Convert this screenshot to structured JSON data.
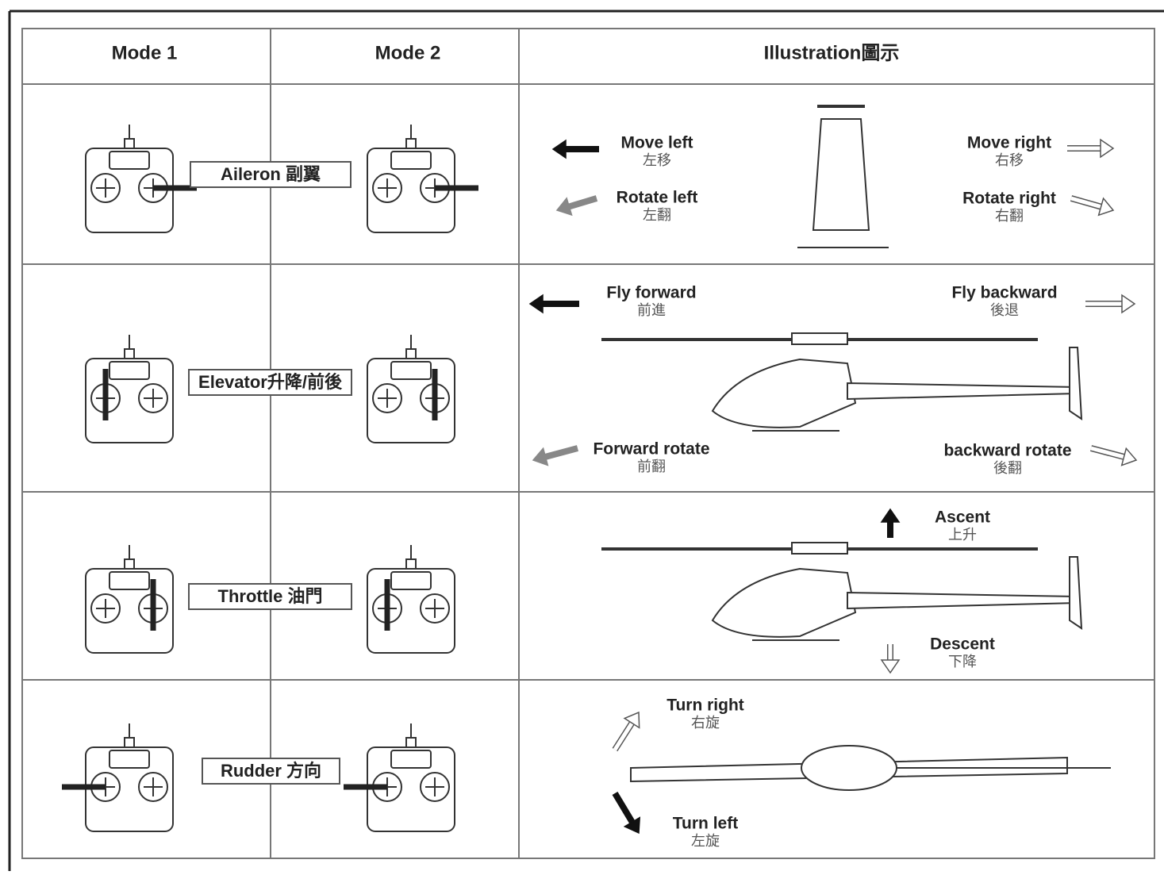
{
  "header": {
    "columns": [
      "Mode 1",
      "Mode 2",
      "Illustration圖示"
    ]
  },
  "rows": [
    {
      "control": "Aileron 副翼",
      "labels": [
        {
          "en": "Move left",
          "zh": "左移"
        },
        {
          "en": "Rotate left",
          "zh": "左翻"
        },
        {
          "en": "Move right",
          "zh": "右移"
        },
        {
          "en": "Rotate right",
          "zh": "右翻"
        }
      ]
    },
    {
      "control": "Elevator升降/前後",
      "labels": [
        {
          "en": "Fly forward",
          "zh": "前進"
        },
        {
          "en": "Fly backward",
          "zh": "後退"
        },
        {
          "en": "Forward rotate",
          "zh": "前翻"
        },
        {
          "en": "backward rotate",
          "zh": "後翻"
        }
      ]
    },
    {
      "control": "Throttle 油門",
      "labels": [
        {
          "en": "Ascent",
          "zh": "上升"
        },
        {
          "en": "Descent",
          "zh": "下降"
        }
      ]
    },
    {
      "control": "Rudder 方向",
      "labels": [
        {
          "en": "Turn right",
          "zh": "右旋"
        },
        {
          "en": "Turn left",
          "zh": "左旋"
        }
      ]
    }
  ]
}
